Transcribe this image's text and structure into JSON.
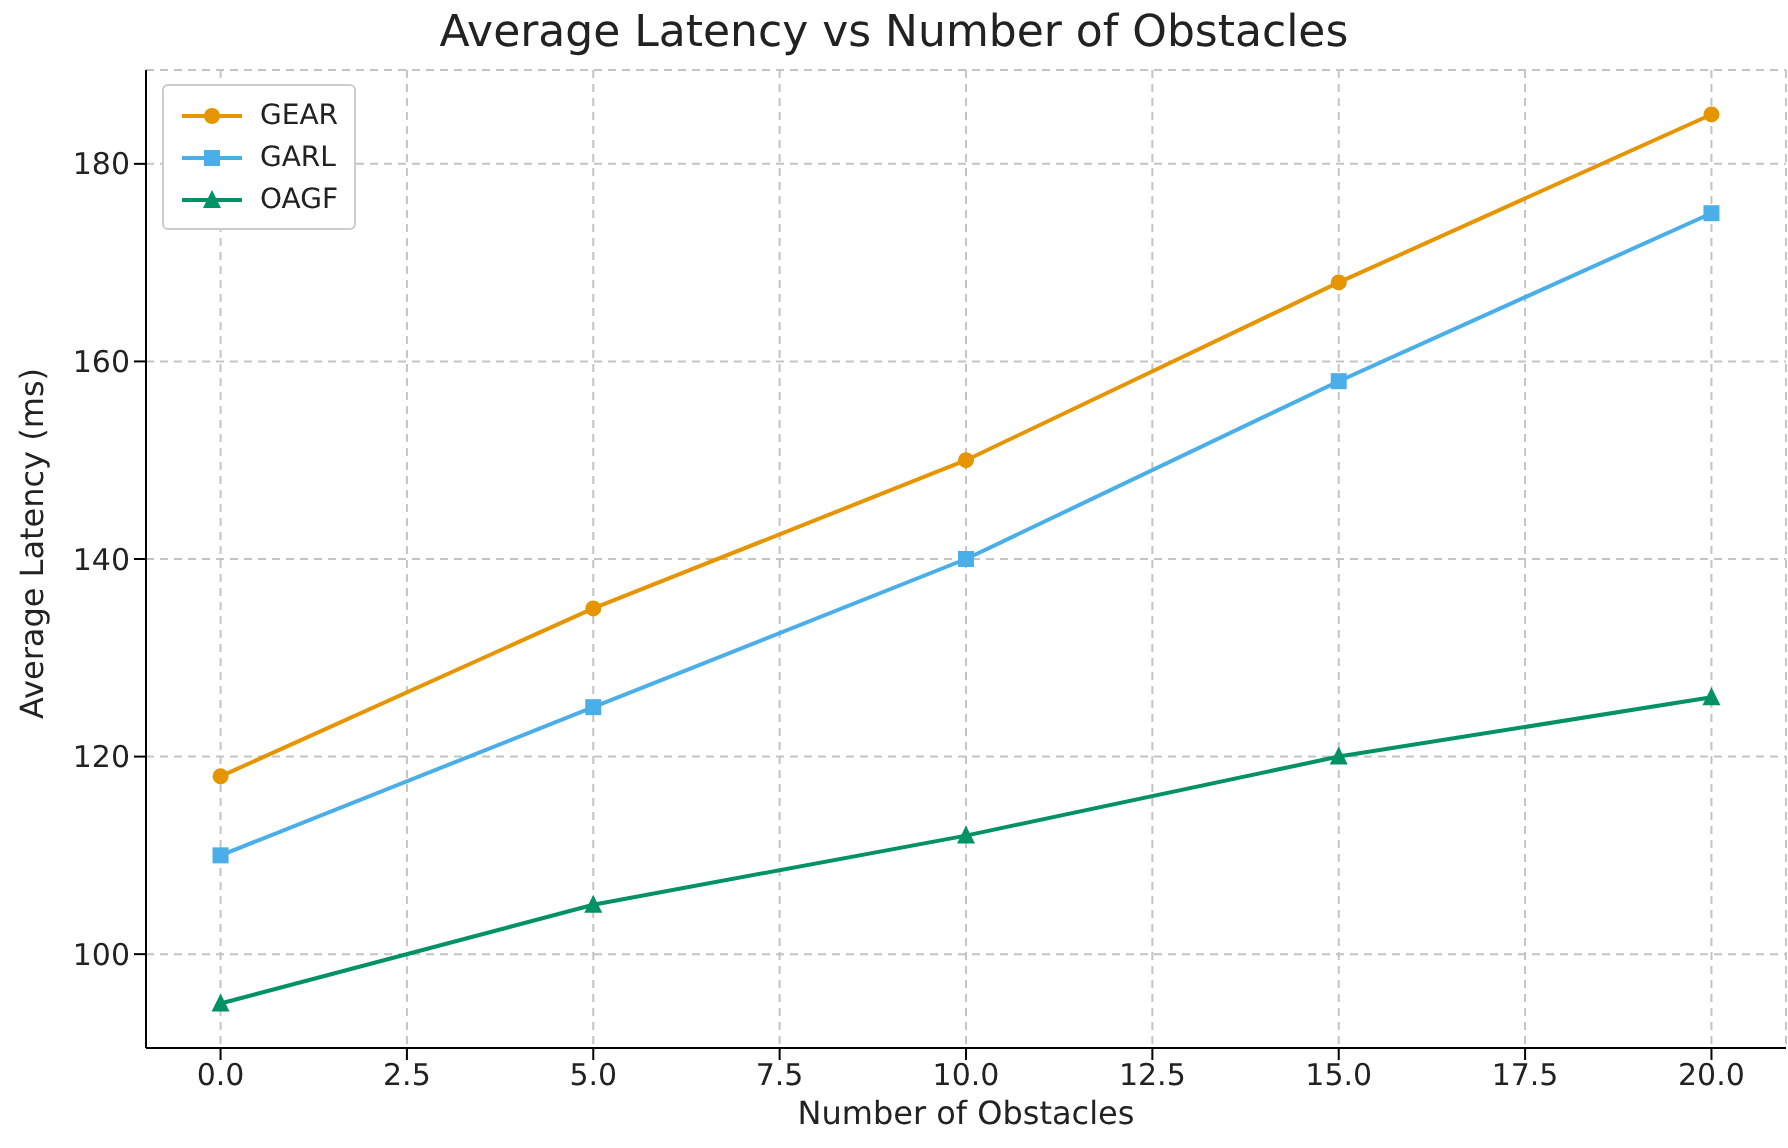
{
  "chart_data": {
    "type": "line",
    "title": "Average Latency vs Number of Obstacles",
    "xlabel": "Number of Obstacles",
    "ylabel": "Average Latency (ms)",
    "x": [
      0,
      5,
      10,
      15,
      20
    ],
    "series": [
      {
        "name": "GEAR",
        "color": "#e69500",
        "marker": "circle",
        "values": [
          118,
          135,
          150,
          168,
          185
        ]
      },
      {
        "name": "GARL",
        "color": "#4aaee8",
        "marker": "square",
        "values": [
          110,
          125,
          140,
          158,
          175
        ]
      },
      {
        "name": "OAGF",
        "color": "#009165",
        "marker": "triangle",
        "values": [
          95,
          105,
          112,
          120,
          126
        ]
      }
    ],
    "xlim": [
      -1,
      21
    ],
    "xticks": [
      {
        "value": 0,
        "label": "0.0"
      },
      {
        "value": 2.5,
        "label": "2.5"
      },
      {
        "value": 5,
        "label": "5.0"
      },
      {
        "value": 7.5,
        "label": "7.5"
      },
      {
        "value": 10,
        "label": "10.0"
      },
      {
        "value": 12.5,
        "label": "12.5"
      },
      {
        "value": 15,
        "label": "15.0"
      },
      {
        "value": 17.5,
        "label": "17.5"
      },
      {
        "value": 20,
        "label": "20.0"
      }
    ],
    "ylim": [
      90.5,
      189.5
    ],
    "yticks": [
      100,
      120,
      140,
      160,
      180
    ],
    "grid": true,
    "legend": "top left",
    "line_style": "solid"
  }
}
